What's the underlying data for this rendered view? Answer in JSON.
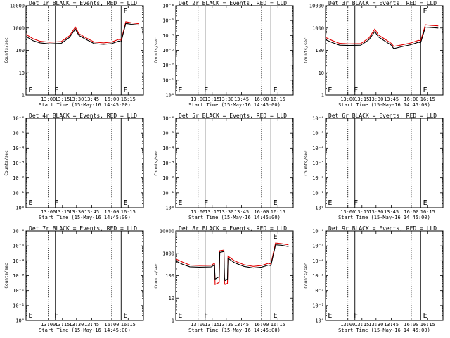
{
  "chart_data": [
    {
      "type": "line",
      "title": "Det 1r BLACK = Events, RED = LLD",
      "xlabel": "Start Time (15-May-16 14:45:00)",
      "ylabel": "Counts/sec",
      "x_tick_labels": [
        "13:00",
        "13:15",
        "13:30",
        "13:45",
        "16:00",
        "16:15"
      ],
      "y_tick_labels": [
        "1",
        "10",
        "100",
        "1000",
        "10000"
      ],
      "y_scale": "log",
      "ylim": [
        1,
        10000
      ],
      "markers": [
        {
          "label": "E",
          "x": 0.02
        },
        {
          "label": "F",
          "x": 0.24
        },
        {
          "label": "E",
          "x": 0.83
        }
      ],
      "dotted_lines": [
        0.19,
        0.73
      ],
      "solid_lines": [
        0.25,
        0.81
      ],
      "series": [
        {
          "color": "#000000",
          "x": [
            0,
            0.06,
            0.12,
            0.2,
            0.3,
            0.37,
            0.42,
            0.45,
            0.5,
            0.58,
            0.66,
            0.73,
            0.79,
            0.81,
            0.85,
            0.9,
            0.96
          ],
          "values": [
            420,
            270,
            215,
            195,
            205,
            380,
            900,
            470,
            330,
            200,
            185,
            200,
            260,
            240,
            1600,
            1450,
            1350
          ]
        },
        {
          "color": "#e00000",
          "x": [
            0,
            0.06,
            0.12,
            0.2,
            0.3,
            0.37,
            0.42,
            0.45,
            0.5,
            0.58,
            0.66,
            0.73,
            0.79,
            0.81,
            0.85,
            0.9,
            0.96
          ],
          "values": [
            520,
            330,
            255,
            230,
            245,
            450,
            1100,
            560,
            390,
            235,
            215,
            235,
            310,
            280,
            1900,
            1700,
            1550
          ]
        }
      ]
    },
    {
      "type": "line",
      "title": "Det 2r BLACK = Events, RED = LLD",
      "xlabel": "Start Time (15-May-16 14:45:00)",
      "ylabel": "Counts/sec",
      "x_tick_labels": [
        "13:00",
        "13:15",
        "13:30",
        "13:45",
        "16:00",
        "16:15"
      ],
      "y_tick_labels": [
        "10⁰",
        "10⁻¹",
        "10⁻²",
        "10⁻³",
        "10⁻⁴",
        "10⁻⁵",
        "10⁻⁶"
      ],
      "markers": [
        {
          "label": "E",
          "x": 0.02
        },
        {
          "label": "F",
          "x": 0.24
        },
        {
          "label": "E",
          "x": 0.83
        }
      ],
      "dotted_lines": [
        0.19,
        0.73
      ],
      "solid_lines": [
        0.25,
        0.81
      ],
      "series": []
    },
    {
      "type": "line",
      "title": "Det 3r BLACK = Events, RED = LLD",
      "xlabel": "Start Time (15-May-16 14:45:00)",
      "ylabel": "Counts/sec",
      "x_tick_labels": [
        "13:00",
        "13:15",
        "13:30",
        "13:45",
        "16:00",
        "16:15"
      ],
      "y_tick_labels": [
        "1",
        "10",
        "100",
        "1000",
        "10000"
      ],
      "y_scale": "log",
      "ylim": [
        1,
        10000
      ],
      "markers": [
        {
          "label": "E",
          "x": 0.02
        },
        {
          "label": "F",
          "x": 0.24
        },
        {
          "label": "E",
          "x": 0.83
        }
      ],
      "dotted_lines": [
        0.19,
        0.73
      ],
      "solid_lines": [
        0.25,
        0.81
      ],
      "series": [
        {
          "color": "#000000",
          "x": [
            0,
            0.06,
            0.12,
            0.2,
            0.3,
            0.37,
            0.42,
            0.45,
            0.5,
            0.56,
            0.58,
            0.66,
            0.73,
            0.79,
            0.81,
            0.85,
            0.9,
            0.96
          ],
          "values": [
            300,
            220,
            170,
            165,
            170,
            300,
            700,
            400,
            270,
            170,
            120,
            150,
            180,
            230,
            220,
            1100,
            1050,
            1000
          ]
        },
        {
          "color": "#e00000",
          "x": [
            0,
            0.06,
            0.12,
            0.2,
            0.3,
            0.37,
            0.42,
            0.45,
            0.5,
            0.56,
            0.58,
            0.66,
            0.73,
            0.79,
            0.81,
            0.85,
            0.9,
            0.96
          ],
          "values": [
            380,
            270,
            205,
            195,
            200,
            360,
            900,
            490,
            330,
            205,
            150,
            180,
            215,
            280,
            270,
            1400,
            1300,
            1250
          ]
        }
      ]
    },
    {
      "type": "line",
      "title": "Det 4r BLACK = Events, RED = LLD",
      "xlabel": "Start Time (15-May-16 14:45:00)",
      "ylabel": "Counts/sec",
      "x_tick_labels": [
        "13:00",
        "13:15",
        "13:30",
        "13:45",
        "16:00",
        "16:15"
      ],
      "y_tick_labels": [
        "10⁰",
        "10⁻¹",
        "10⁻²",
        "10⁻³",
        "10⁻⁴",
        "10⁻⁵",
        "10⁻⁶"
      ],
      "markers": [
        {
          "label": "E",
          "x": 0.02
        },
        {
          "label": "F",
          "x": 0.24
        },
        {
          "label": "E",
          "x": 0.83
        }
      ],
      "dotted_lines": [
        0.19,
        0.73
      ],
      "solid_lines": [
        0.25,
        0.81
      ],
      "series": []
    },
    {
      "type": "line",
      "title": "Det 5r BLACK = Events, RED = LLD",
      "xlabel": "Start Time (15-May-16 14:45:00)",
      "ylabel": "Counts/sec",
      "x_tick_labels": [
        "13:00",
        "13:15",
        "13:30",
        "13:45",
        "16:00",
        "16:15"
      ],
      "y_tick_labels": [
        "10⁰",
        "10⁻¹",
        "10⁻²",
        "10⁻³",
        "10⁻⁴",
        "10⁻⁵",
        "10⁻⁶"
      ],
      "markers": [
        {
          "label": "E",
          "x": 0.02
        },
        {
          "label": "F",
          "x": 0.24
        },
        {
          "label": "E",
          "x": 0.83
        }
      ],
      "dotted_lines": [
        0.19,
        0.73
      ],
      "solid_lines": [
        0.25,
        0.81
      ],
      "series": []
    },
    {
      "type": "line",
      "title": "Det 6r BLACK = Events, RED = LLD",
      "xlabel": "Start Time (15-May-16 14:45:00)",
      "ylabel": "Counts/sec",
      "x_tick_labels": [
        "13:00",
        "13:15",
        "13:30",
        "13:45",
        "16:00",
        "16:15"
      ],
      "y_tick_labels": [
        "10⁰",
        "10⁻¹",
        "10⁻²",
        "10⁻³",
        "10⁻⁴",
        "10⁻⁵",
        "10⁻⁶"
      ],
      "markers": [
        {
          "label": "E",
          "x": 0.02
        },
        {
          "label": "F",
          "x": 0.24
        },
        {
          "label": "E",
          "x": 0.83
        }
      ],
      "dotted_lines": [
        0.19,
        0.73
      ],
      "solid_lines": [
        0.25,
        0.81
      ],
      "series": []
    },
    {
      "type": "line",
      "title": "Det 7r BLACK = Events, RED = LLD",
      "xlabel": "Start Time (15-May-16 14:45:00)",
      "ylabel": "Counts/sec",
      "x_tick_labels": [
        "13:00",
        "13:15",
        "13:30",
        "13:45",
        "16:00",
        "16:15"
      ],
      "y_tick_labels": [
        "10⁰",
        "10⁻¹",
        "10⁻²",
        "10⁻³",
        "10⁻⁴",
        "10⁻⁵",
        "10⁻⁶"
      ],
      "markers": [
        {
          "label": "E",
          "x": 0.02
        },
        {
          "label": "F",
          "x": 0.24
        },
        {
          "label": "E",
          "x": 0.83
        }
      ],
      "dotted_lines": [
        0.19,
        0.73
      ],
      "solid_lines": [
        0.25,
        0.81
      ],
      "series": []
    },
    {
      "type": "line",
      "title": "Det 8r BLACK = Events, RED = LLD",
      "xlabel": "Start Time (15-May-16 14:45:00)",
      "ylabel": "Counts/sec",
      "x_tick_labels": [
        "13:00",
        "13:15",
        "13:30",
        "13:45",
        "16:00",
        "16:15"
      ],
      "y_tick_labels": [
        "1",
        "10",
        "100",
        "1000",
        "10000"
      ],
      "y_scale": "log",
      "ylim": [
        1,
        10000
      ],
      "markers": [
        {
          "label": "E",
          "x": 0.02
        },
        {
          "label": "F",
          "x": 0.24
        },
        {
          "label": "E",
          "x": 0.83
        }
      ],
      "dotted_lines": [
        0.19,
        0.73
      ],
      "solid_lines": [
        0.25,
        0.81
      ],
      "series": [
        {
          "color": "#000000",
          "x": [
            0,
            0.06,
            0.12,
            0.2,
            0.3,
            0.33,
            0.335,
            0.37,
            0.375,
            0.41,
            0.415,
            0.42,
            0.44,
            0.445,
            0.5,
            0.58,
            0.66,
            0.73,
            0.79,
            0.81,
            0.85,
            0.9,
            0.96
          ],
          "values": [
            450,
            320,
            250,
            240,
            245,
            300,
            70,
            90,
            1100,
            1200,
            80,
            60,
            70,
            600,
            380,
            260,
            220,
            240,
            300,
            280,
            2400,
            2300,
            2000
          ]
        },
        {
          "color": "#e00000",
          "x": [
            0,
            0.06,
            0.12,
            0.2,
            0.3,
            0.33,
            0.335,
            0.37,
            0.375,
            0.41,
            0.415,
            0.42,
            0.44,
            0.445,
            0.5,
            0.58,
            0.66,
            0.73,
            0.79,
            0.81,
            0.85,
            0.9,
            0.96
          ],
          "values": [
            560,
            400,
            300,
            285,
            290,
            360,
            40,
            50,
            1300,
            1400,
            50,
            40,
            45,
            750,
            460,
            310,
            260,
            285,
            360,
            330,
            2900,
            2700,
            2400
          ]
        }
      ]
    },
    {
      "type": "line",
      "title": "Det 9r BLACK = Events, RED = LLD",
      "xlabel": "Start Time (15-May-16 14:45:00)",
      "ylabel": "Counts/sec",
      "x_tick_labels": [
        "13:00",
        "13:15",
        "13:30",
        "13:45",
        "16:00",
        "16:15"
      ],
      "y_tick_labels": [
        "10⁰",
        "10⁻¹",
        "10⁻²",
        "10⁻³",
        "10⁻⁴",
        "10⁻⁵",
        "10⁻⁶"
      ],
      "markers": [
        {
          "label": "E",
          "x": 0.02
        },
        {
          "label": "F",
          "x": 0.24
        },
        {
          "label": "E",
          "x": 0.83
        }
      ],
      "dotted_lines": [
        0.19,
        0.73
      ],
      "solid_lines": [
        0.25,
        0.81
      ],
      "series": []
    }
  ]
}
